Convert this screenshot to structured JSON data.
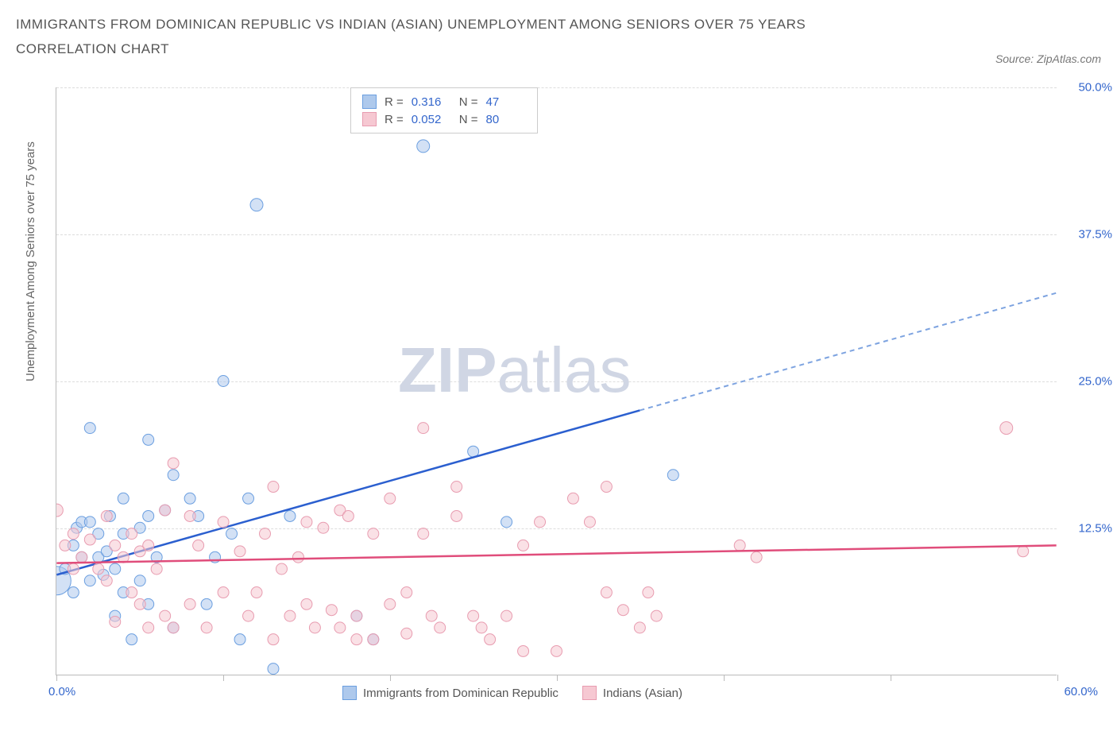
{
  "title": "IMMIGRANTS FROM DOMINICAN REPUBLIC VS INDIAN (ASIAN) UNEMPLOYMENT AMONG SENIORS OVER 75 YEARS CORRELATION CHART",
  "source": "Source: ZipAtlas.com",
  "watermark": {
    "part1": "ZIP",
    "part2": "atlas"
  },
  "y_axis_title": "Unemployment Among Seniors over 75 years",
  "chart": {
    "type": "scatter",
    "background_color": "#ffffff",
    "grid_color": "#dddddd",
    "axis_color": "#bbbbbb",
    "xlim": [
      0,
      60
    ],
    "ylim": [
      0,
      50
    ],
    "x_ticks": [
      0,
      10,
      20,
      30,
      40,
      50,
      60
    ],
    "x_tick_labels": {
      "first": "0.0%",
      "last": "60.0%"
    },
    "y_ticks": [
      {
        "value": 12.5,
        "label": "12.5%"
      },
      {
        "value": 25.0,
        "label": "25.0%"
      },
      {
        "value": 37.5,
        "label": "37.5%"
      },
      {
        "value": 50.0,
        "label": "50.0%"
      }
    ],
    "series": [
      {
        "id": "dominican",
        "label": "Immigrants from Dominican Republic",
        "fill_color": "#aec9ec",
        "stroke_color": "#6b9fe0",
        "trend_solid_color": "#2b5fcf",
        "trend_dash_color": "#7da3e0",
        "R": "0.316",
        "N": "47",
        "trend": {
          "x0": 0,
          "y0": 8.5,
          "x_solid_end": 35,
          "y_solid_end": 22.5,
          "x_dash_end": 60,
          "y_dash_end": 32.5
        },
        "points": [
          {
            "x": 0,
            "y": 8,
            "r": 18
          },
          {
            "x": 0.5,
            "y": 9,
            "r": 7
          },
          {
            "x": 1,
            "y": 7,
            "r": 7
          },
          {
            "x": 1,
            "y": 11,
            "r": 7
          },
          {
            "x": 1.2,
            "y": 12.5,
            "r": 7
          },
          {
            "x": 1.5,
            "y": 10,
            "r": 7
          },
          {
            "x": 1.5,
            "y": 13,
            "r": 7
          },
          {
            "x": 2,
            "y": 8,
            "r": 7
          },
          {
            "x": 2,
            "y": 13,
            "r": 7
          },
          {
            "x": 2,
            "y": 21,
            "r": 7
          },
          {
            "x": 2.5,
            "y": 10,
            "r": 7
          },
          {
            "x": 2.5,
            "y": 12,
            "r": 7
          },
          {
            "x": 2.8,
            "y": 8.5,
            "r": 7
          },
          {
            "x": 3,
            "y": 10.5,
            "r": 7
          },
          {
            "x": 3.2,
            "y": 13.5,
            "r": 7
          },
          {
            "x": 3.5,
            "y": 9,
            "r": 7
          },
          {
            "x": 3.5,
            "y": 5,
            "r": 7
          },
          {
            "x": 4,
            "y": 12,
            "r": 7
          },
          {
            "x": 4,
            "y": 15,
            "r": 7
          },
          {
            "x": 4,
            "y": 7,
            "r": 7
          },
          {
            "x": 4.5,
            "y": 3,
            "r": 7
          },
          {
            "x": 5,
            "y": 8,
            "r": 7
          },
          {
            "x": 5,
            "y": 12.5,
            "r": 7
          },
          {
            "x": 5.5,
            "y": 6,
            "r": 7
          },
          {
            "x": 5.5,
            "y": 20,
            "r": 7
          },
          {
            "x": 5.5,
            "y": 13.5,
            "r": 7
          },
          {
            "x": 6,
            "y": 10,
            "r": 7
          },
          {
            "x": 6.5,
            "y": 14,
            "r": 7
          },
          {
            "x": 7,
            "y": 4,
            "r": 7
          },
          {
            "x": 7,
            "y": 17,
            "r": 7
          },
          {
            "x": 8,
            "y": 15,
            "r": 7
          },
          {
            "x": 8.5,
            "y": 13.5,
            "r": 7
          },
          {
            "x": 9,
            "y": 6,
            "r": 7
          },
          {
            "x": 9.5,
            "y": 10,
            "r": 7
          },
          {
            "x": 10,
            "y": 25,
            "r": 7
          },
          {
            "x": 10.5,
            "y": 12,
            "r": 7
          },
          {
            "x": 11,
            "y": 3,
            "r": 7
          },
          {
            "x": 11.5,
            "y": 15,
            "r": 7
          },
          {
            "x": 12,
            "y": 40,
            "r": 8
          },
          {
            "x": 13,
            "y": 0.5,
            "r": 7
          },
          {
            "x": 14,
            "y": 13.5,
            "r": 7
          },
          {
            "x": 18,
            "y": 5,
            "r": 7
          },
          {
            "x": 19,
            "y": 3,
            "r": 7
          },
          {
            "x": 22,
            "y": 45,
            "r": 8
          },
          {
            "x": 25,
            "y": 19,
            "r": 7
          },
          {
            "x": 27,
            "y": 13,
            "r": 7
          },
          {
            "x": 37,
            "y": 17,
            "r": 7
          }
        ]
      },
      {
        "id": "indian",
        "label": "Indians (Asian)",
        "fill_color": "#f6c8d2",
        "stroke_color": "#e89cb0",
        "trend_solid_color": "#e04d7b",
        "trend_dash_color": "#e89cb0",
        "R": "0.052",
        "N": "80",
        "trend": {
          "x0": 0,
          "y0": 9.5,
          "x_solid_end": 60,
          "y_solid_end": 11.0,
          "x_dash_end": 60,
          "y_dash_end": 11.0
        },
        "points": [
          {
            "x": 0,
            "y": 14,
            "r": 8
          },
          {
            "x": 0.5,
            "y": 11,
            "r": 7
          },
          {
            "x": 1,
            "y": 12,
            "r": 7
          },
          {
            "x": 1,
            "y": 9,
            "r": 7
          },
          {
            "x": 1.5,
            "y": 10,
            "r": 7
          },
          {
            "x": 2,
            "y": 11.5,
            "r": 7
          },
          {
            "x": 2.5,
            "y": 9,
            "r": 7
          },
          {
            "x": 3,
            "y": 13.5,
            "r": 7
          },
          {
            "x": 3,
            "y": 8,
            "r": 7
          },
          {
            "x": 3.5,
            "y": 11,
            "r": 7
          },
          {
            "x": 3.5,
            "y": 4.5,
            "r": 7
          },
          {
            "x": 4,
            "y": 10,
            "r": 7
          },
          {
            "x": 4.5,
            "y": 12,
            "r": 7
          },
          {
            "x": 4.5,
            "y": 7,
            "r": 7
          },
          {
            "x": 5,
            "y": 10.5,
            "r": 7
          },
          {
            "x": 5,
            "y": 6,
            "r": 7
          },
          {
            "x": 5.5,
            "y": 11,
            "r": 7
          },
          {
            "x": 5.5,
            "y": 4,
            "r": 7
          },
          {
            "x": 6,
            "y": 9,
            "r": 7
          },
          {
            "x": 6.5,
            "y": 5,
            "r": 7
          },
          {
            "x": 6.5,
            "y": 14,
            "r": 7
          },
          {
            "x": 7,
            "y": 18,
            "r": 7
          },
          {
            "x": 7,
            "y": 4,
            "r": 7
          },
          {
            "x": 8,
            "y": 13.5,
            "r": 7
          },
          {
            "x": 8,
            "y": 6,
            "r": 7
          },
          {
            "x": 8.5,
            "y": 11,
            "r": 7
          },
          {
            "x": 9,
            "y": 4,
            "r": 7
          },
          {
            "x": 10,
            "y": 13,
            "r": 7
          },
          {
            "x": 10,
            "y": 7,
            "r": 7
          },
          {
            "x": 11,
            "y": 10.5,
            "r": 7
          },
          {
            "x": 11.5,
            "y": 5,
            "r": 7
          },
          {
            "x": 12,
            "y": 7,
            "r": 7
          },
          {
            "x": 12.5,
            "y": 12,
            "r": 7
          },
          {
            "x": 13,
            "y": 16,
            "r": 7
          },
          {
            "x": 13,
            "y": 3,
            "r": 7
          },
          {
            "x": 13.5,
            "y": 9,
            "r": 7
          },
          {
            "x": 14,
            "y": 5,
            "r": 7
          },
          {
            "x": 14.5,
            "y": 10,
            "r": 7
          },
          {
            "x": 15,
            "y": 13,
            "r": 7
          },
          {
            "x": 15,
            "y": 6,
            "r": 7
          },
          {
            "x": 15.5,
            "y": 4,
            "r": 7
          },
          {
            "x": 16,
            "y": 12.5,
            "r": 7
          },
          {
            "x": 16.5,
            "y": 5.5,
            "r": 7
          },
          {
            "x": 17,
            "y": 4,
            "r": 7
          },
          {
            "x": 17,
            "y": 14,
            "r": 7
          },
          {
            "x": 17.5,
            "y": 13.5,
            "r": 7
          },
          {
            "x": 18,
            "y": 5,
            "r": 7
          },
          {
            "x": 18,
            "y": 3,
            "r": 7
          },
          {
            "x": 19,
            "y": 3,
            "r": 7
          },
          {
            "x": 19,
            "y": 12,
            "r": 7
          },
          {
            "x": 20,
            "y": 15,
            "r": 7
          },
          {
            "x": 20,
            "y": 6,
            "r": 7
          },
          {
            "x": 21,
            "y": 7,
            "r": 7
          },
          {
            "x": 21,
            "y": 3.5,
            "r": 7
          },
          {
            "x": 22,
            "y": 12,
            "r": 7
          },
          {
            "x": 22,
            "y": 21,
            "r": 7
          },
          {
            "x": 22.5,
            "y": 5,
            "r": 7
          },
          {
            "x": 23,
            "y": 4,
            "r": 7
          },
          {
            "x": 24,
            "y": 13.5,
            "r": 7
          },
          {
            "x": 24,
            "y": 16,
            "r": 7
          },
          {
            "x": 25,
            "y": 5,
            "r": 7
          },
          {
            "x": 25.5,
            "y": 4,
            "r": 7
          },
          {
            "x": 26,
            "y": 3,
            "r": 7
          },
          {
            "x": 27,
            "y": 5,
            "r": 7
          },
          {
            "x": 28,
            "y": 2,
            "r": 7
          },
          {
            "x": 28,
            "y": 11,
            "r": 7
          },
          {
            "x": 29,
            "y": 13,
            "r": 7
          },
          {
            "x": 30,
            "y": 2,
            "r": 7
          },
          {
            "x": 31,
            "y": 15,
            "r": 7
          },
          {
            "x": 32,
            "y": 13,
            "r": 7
          },
          {
            "x": 33,
            "y": 7,
            "r": 7
          },
          {
            "x": 33,
            "y": 16,
            "r": 7
          },
          {
            "x": 34,
            "y": 5.5,
            "r": 7
          },
          {
            "x": 35,
            "y": 4,
            "r": 7
          },
          {
            "x": 35.5,
            "y": 7,
            "r": 7
          },
          {
            "x": 36,
            "y": 5,
            "r": 7
          },
          {
            "x": 41,
            "y": 11,
            "r": 7
          },
          {
            "x": 42,
            "y": 10,
            "r": 7
          },
          {
            "x": 57,
            "y": 21,
            "r": 8
          },
          {
            "x": 58,
            "y": 10.5,
            "r": 7
          }
        ]
      }
    ]
  },
  "legend_top_label_R": "R =",
  "legend_top_label_N": "N ="
}
